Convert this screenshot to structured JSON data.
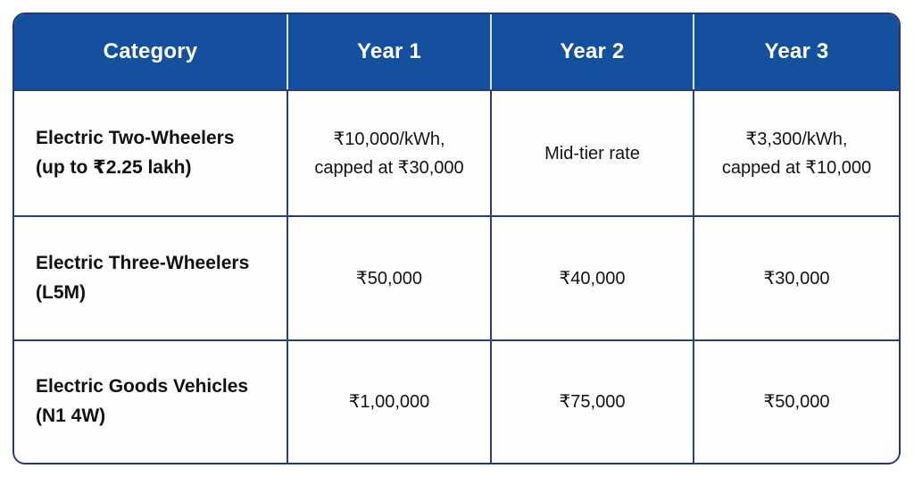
{
  "chart_data": {
    "type": "table",
    "columns": [
      "Category",
      "Year 1",
      "Year 2",
      "Year 3"
    ],
    "rows": [
      [
        "Electric Two-Wheelers (up to ₹2.25 lakh)",
        "₹10,000/kWh, capped at ₹30,000",
        "Mid-tier rate",
        "₹3,300/kWh, capped at ₹10,000"
      ],
      [
        "Electric Three-Wheelers (L5M)",
        "₹50,000",
        "₹40,000",
        "₹30,000"
      ],
      [
        "Electric Goods Vehicles (N1 4W)",
        "₹1,00,000",
        "₹75,000",
        "₹50,000"
      ]
    ],
    "layout": "header row dark blue, 3 body rows, navy gridlines, rounded outer border"
  },
  "table": {
    "header": [
      "Category",
      "Year 1",
      "Year 2",
      "Year 3"
    ],
    "rows": [
      {
        "category": "Electric Two-Wheelers\n(up to ₹2.25 lakh)",
        "values": [
          "₹10,000/kWh,\ncapped at ₹30,000",
          "Mid-tier rate",
          "₹3,300/kWh,\ncapped at ₹10,000"
        ]
      },
      {
        "category": "Electric Three-Wheelers\n(L5M)",
        "values": [
          "₹50,000",
          "₹40,000",
          "₹30,000"
        ]
      },
      {
        "category": "Electric Goods Vehicles\n(N1 4W)",
        "values": [
          "₹1,00,000",
          "₹75,000",
          "₹50,000"
        ]
      }
    ]
  },
  "colors": {
    "header_bg": "#15509e",
    "header_text": "#ffffff",
    "header_divider": "#dbe3ee",
    "grid_border": "#2c4072",
    "outer_border": "#24386d",
    "body_text": "#141414",
    "cell_bg": "#fdfdfd",
    "page_bg": "#ffffff"
  }
}
